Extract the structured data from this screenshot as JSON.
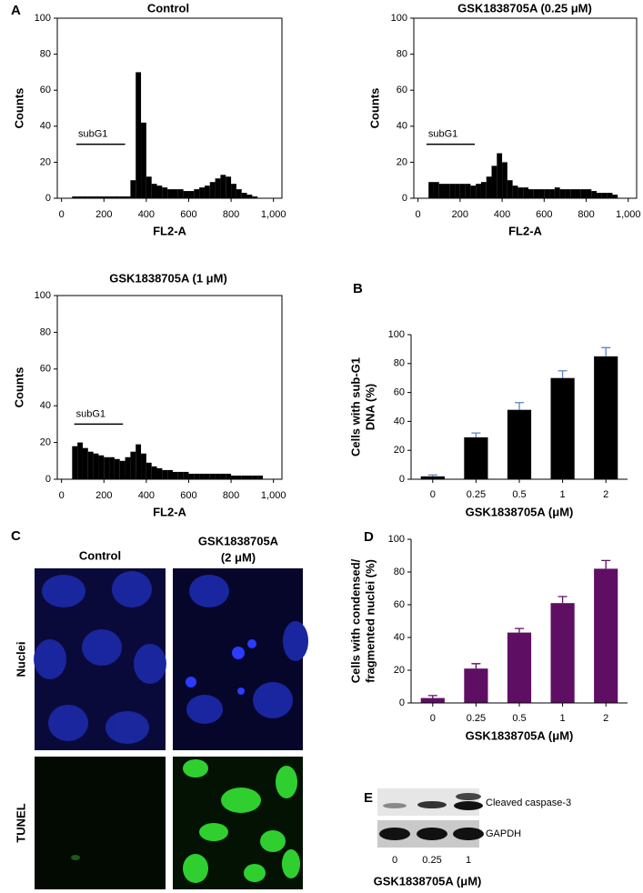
{
  "panel_labels": [
    "A",
    "B",
    "C",
    "D",
    "E"
  ],
  "chart_data": [
    {
      "type": "histogram",
      "title": "Control",
      "xlabel": "FL2-A",
      "ylabel": [
        "Counts"
      ],
      "bins": [
        0,
        25,
        50,
        75,
        100,
        125,
        150,
        175,
        200,
        225,
        250,
        275,
        300,
        325,
        350,
        375,
        400,
        425,
        450,
        475,
        500,
        525,
        550,
        575,
        600,
        625,
        650,
        675,
        700,
        725,
        750,
        775,
        800,
        825,
        850,
        875,
        900,
        925,
        950,
        975,
        1000
      ],
      "counts": [
        0,
        0,
        1,
        1,
        1,
        1,
        1,
        1,
        1,
        1,
        1,
        1,
        1,
        10,
        70,
        42,
        12,
        8,
        7,
        6,
        5,
        5,
        5,
        4,
        4,
        5,
        6,
        7,
        9,
        11,
        13,
        12,
        8,
        5,
        3,
        2,
        1,
        0,
        0,
        0
      ],
      "color": "#000000",
      "xlim": [
        -20,
        1040
      ],
      "ylim": [
        0,
        100
      ],
      "xticks": [
        0,
        200,
        400,
        600,
        800,
        {
          "value": 1000,
          "label": "1,000"
        }
      ],
      "yticks": [
        0,
        20,
        40,
        60,
        80,
        100
      ],
      "gate": {
        "label": "subG1",
        "range": [
          70,
          300
        ],
        "y": 30
      }
    },
    {
      "type": "histogram",
      "title": "GSK1838705A (0.25 μM)",
      "xlabel": "FL2-A",
      "ylabel": [
        "Counts"
      ],
      "bins": [
        0,
        25,
        50,
        75,
        100,
        125,
        150,
        175,
        200,
        225,
        250,
        275,
        300,
        325,
        350,
        375,
        400,
        425,
        450,
        475,
        500,
        525,
        550,
        575,
        600,
        625,
        650,
        675,
        700,
        725,
        750,
        775,
        800,
        825,
        850,
        875,
        900,
        925,
        950,
        975,
        1000
      ],
      "counts": [
        0,
        0,
        9,
        9,
        8,
        8,
        8,
        8,
        8,
        8,
        7,
        8,
        9,
        12,
        18,
        25,
        20,
        10,
        7,
        6,
        6,
        5,
        5,
        5,
        5,
        5,
        6,
        5,
        5,
        5,
        5,
        5,
        5,
        4,
        3,
        3,
        3,
        2,
        0,
        0
      ],
      "color": "#000000",
      "xlim": [
        -20,
        1040
      ],
      "ylim": [
        0,
        100
      ],
      "xticks": [
        0,
        200,
        400,
        600,
        800,
        {
          "value": 1000,
          "label": "1,000"
        }
      ],
      "yticks": [
        0,
        20,
        40,
        60,
        80,
        100
      ],
      "gate": {
        "label": "subG1",
        "range": [
          40,
          270
        ],
        "y": 30
      }
    },
    {
      "type": "histogram",
      "title": "GSK1838705A (1 μM)",
      "xlabel": "FL2-A",
      "ylabel": [
        "Counts"
      ],
      "bins": [
        0,
        25,
        50,
        75,
        100,
        125,
        150,
        175,
        200,
        225,
        250,
        275,
        300,
        325,
        350,
        375,
        400,
        425,
        450,
        475,
        500,
        525,
        550,
        575,
        600,
        625,
        650,
        675,
        700,
        725,
        750,
        775,
        800,
        825,
        850,
        875,
        900,
        925,
        950,
        975,
        1000
      ],
      "counts": [
        0,
        0,
        18,
        20,
        17,
        15,
        14,
        13,
        12,
        12,
        11,
        10,
        12,
        15,
        19,
        14,
        9,
        7,
        6,
        5,
        5,
        4,
        4,
        4,
        3,
        3,
        3,
        3,
        3,
        3,
        3,
        3,
        2,
        2,
        2,
        2,
        2,
        2,
        0,
        0
      ],
      "color": "#000000",
      "xlim": [
        -20,
        1040
      ],
      "ylim": [
        0,
        100
      ],
      "xticks": [
        0,
        200,
        400,
        600,
        800,
        {
          "value": 1000,
          "label": "1,000"
        }
      ],
      "yticks": [
        0,
        20,
        40,
        60,
        80,
        100
      ],
      "gate": {
        "label": "subG1",
        "range": [
          60,
          290
        ],
        "y": 30
      }
    },
    {
      "type": "bar",
      "xlabel": "GSK1838705A (μM)",
      "ylabel": [
        "Cells with sub-G1",
        "DNA (%)"
      ],
      "categories": [
        "0",
        "0.25",
        "0.5",
        "1",
        "2"
      ],
      "values": [
        2,
        29,
        48,
        70,
        85
      ],
      "errors": [
        1,
        3,
        5,
        5,
        6
      ],
      "color": "#000000",
      "error_color": "#5b84c8",
      "ylim": [
        0,
        100
      ],
      "yticks": [
        0,
        20,
        40,
        60,
        80,
        100
      ]
    },
    {
      "type": "bar",
      "xlabel": "GSK1838705A (μM)",
      "ylabel": [
        "Cells with condensed/",
        "fragmented nuclei (%)"
      ],
      "categories": [
        "0",
        "0.25",
        "0.5",
        "1",
        "2"
      ],
      "values": [
        3,
        21,
        43,
        61,
        82
      ],
      "errors": [
        1.5,
        3,
        2.5,
        4,
        5
      ],
      "color": "#5e0f64",
      "error_color": "#5e0f64",
      "ylim": [
        0,
        100
      ],
      "yticks": [
        0,
        20,
        40,
        60,
        80,
        100
      ]
    }
  ],
  "images": {
    "columns": [
      [
        "Control"
      ],
      [
        "GSK1838705A",
        "(2 μM)"
      ]
    ],
    "rows": [
      "Nuclei",
      "TUNEL"
    ]
  },
  "blot": {
    "bands": [
      "Cleaved caspase-3",
      "GAPDH"
    ],
    "lanes": [
      "0",
      "0.25",
      "1"
    ],
    "xlabel": "GSK1838705A (μM)"
  }
}
